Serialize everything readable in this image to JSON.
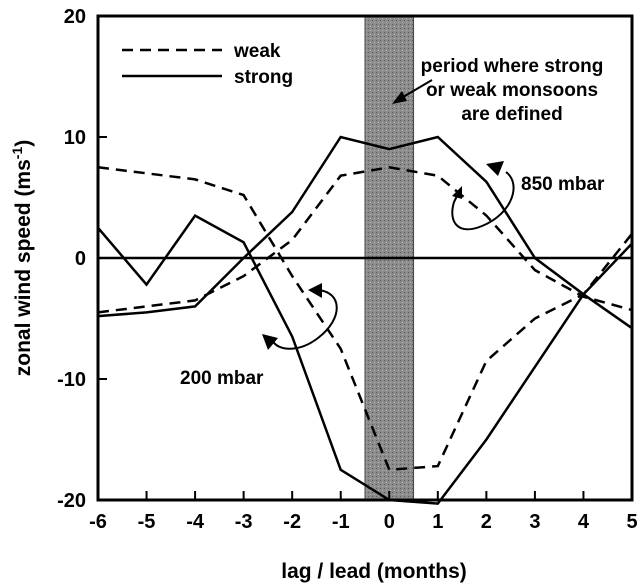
{
  "chart_data": {
    "type": "line",
    "title": "",
    "xlabel": "lag / lead (months)",
    "ylabel": "zonal wind speed (ms",
    "ylabel_sup": "-1",
    "ylabel_close": ")",
    "xlim": [
      -6,
      5
    ],
    "ylim": [
      -20,
      20
    ],
    "x_ticks": [
      -6,
      -5,
      -4,
      -3,
      -2,
      -1,
      0,
      1,
      2,
      3,
      4,
      5
    ],
    "y_ticks": [
      -20,
      -10,
      0,
      10,
      20
    ],
    "zero_line": true,
    "grid": false,
    "shaded_band": {
      "x_from": -0.5,
      "x_to": 0.5,
      "color": "#8c8c8c"
    },
    "legend": {
      "position": "top-left",
      "entries": [
        {
          "label": "weak",
          "style": "dashed"
        },
        {
          "label": "strong",
          "style": "solid"
        }
      ]
    },
    "series": [
      {
        "name": "weak",
        "level": "850 mbar",
        "style": "dashed",
        "x": [
          -6,
          -5,
          -4,
          -3,
          -2,
          -1,
          0,
          1,
          2,
          3,
          4,
          5
        ],
        "y": [
          -4.5,
          -4.0,
          -3.5,
          -1.5,
          1.5,
          6.8,
          7.5,
          6.8,
          3.5,
          -1.0,
          -3.2,
          -4.3
        ]
      },
      {
        "name": "strong",
        "level": "850 mbar",
        "style": "solid",
        "x": [
          -6,
          -5,
          -4,
          -3,
          -2,
          -1,
          0,
          1,
          2,
          3,
          4,
          5
        ],
        "y": [
          -4.8,
          -4.5,
          -4.0,
          0.0,
          3.8,
          10.0,
          9.0,
          10.0,
          6.3,
          0.0,
          -3.0,
          -5.8
        ]
      },
      {
        "name": "weak",
        "level": "200 mbar",
        "style": "dashed",
        "x": [
          -6,
          -5,
          -4,
          -3,
          -2,
          -1,
          0,
          1,
          2,
          3,
          4,
          5
        ],
        "y": [
          7.5,
          7.0,
          6.5,
          5.2,
          -1.5,
          -7.5,
          -17.5,
          -17.2,
          -8.5,
          -5.0,
          -3.0,
          2.0
        ]
      },
      {
        "name": "strong",
        "level": "200 mbar",
        "style": "solid",
        "x": [
          -6,
          -5,
          -4,
          -3,
          -2,
          -1,
          0,
          1,
          2,
          3,
          4,
          5
        ],
        "y": [
          2.5,
          -2.2,
          3.5,
          1.3,
          -6.5,
          -17.5,
          -20.0,
          -20.3,
          -15.0,
          -9.0,
          -3.0,
          1.2
        ]
      }
    ],
    "annotations": {
      "band_note": [
        "period where strong",
        "or weak monsoons",
        "are defined"
      ],
      "label_850": "850 mbar",
      "label_200": "200 mbar"
    }
  }
}
